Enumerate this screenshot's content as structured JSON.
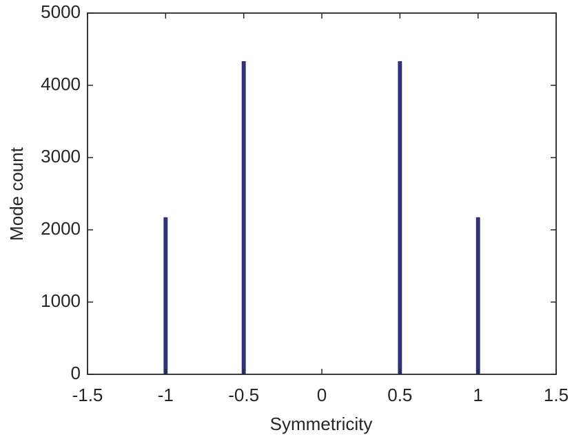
{
  "chart_data": {
    "type": "bar",
    "x": [
      -1,
      -0.5,
      0.5,
      1
    ],
    "values": [
      2170,
      4330,
      4330,
      2170
    ],
    "color": "#33337f",
    "xlabel": "Symmetricity",
    "ylabel": "Mode count",
    "xlim": [
      -1.5,
      1.5
    ],
    "xticks": [
      -1.5,
      -1,
      -0.5,
      0,
      0.5,
      1,
      1.5
    ],
    "ylim": [
      0,
      5000
    ],
    "yticks": [
      0,
      1000,
      2000,
      3000,
      4000,
      5000
    ]
  }
}
